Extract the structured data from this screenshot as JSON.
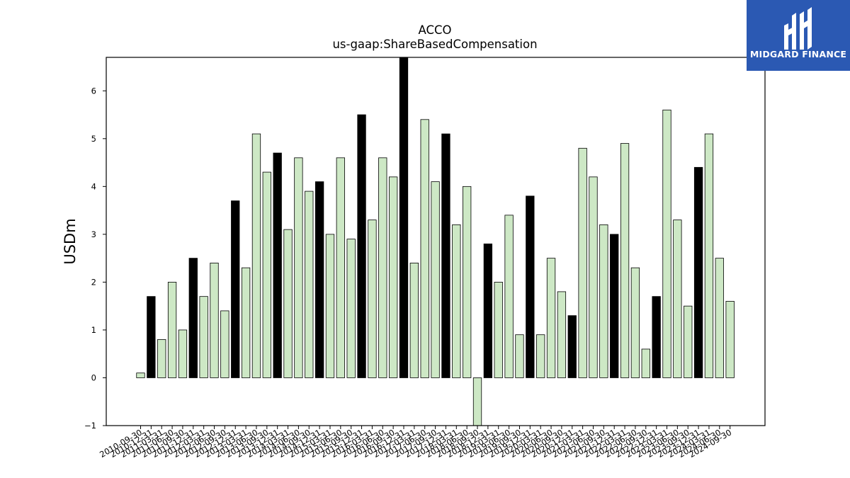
{
  "logo": {
    "text": "MIDGARD FINANCE",
    "bg_color": "#2b59b3",
    "icon": "midgard-logo-icon"
  },
  "chart_data": {
    "type": "bar",
    "title": "ACCO",
    "subtitle": "us-gaap:ShareBasedCompensation",
    "ylabel": "USDm",
    "xlabel": "",
    "ylim": [
      -1,
      6.7
    ],
    "yticks": [
      -1,
      0,
      1,
      2,
      3,
      4,
      5,
      6
    ],
    "grid": false,
    "colors": {
      "q4": "#000000",
      "other": "#cde8c5",
      "edge": "#000000"
    },
    "categories": [
      "2010-09-30",
      "2010-12-31",
      "2011-03-31",
      "2011-06-30",
      "2011-09-30",
      "2011-12-31",
      "2012-03-31",
      "2012-06-30",
      "2012-09-30",
      "2012-12-31",
      "2013-03-31",
      "2013-06-30",
      "2013-09-30",
      "2013-12-31",
      "2014-03-31",
      "2014-06-30",
      "2014-09-30",
      "2014-12-31",
      "2015-03-31",
      "2015-06-30",
      "2015-09-30",
      "2015-12-31",
      "2016-03-31",
      "2016-06-30",
      "2016-09-30",
      "2016-12-31",
      "2017-03-31",
      "2017-06-30",
      "2017-09-30",
      "2017-12-31",
      "2018-03-31",
      "2018-06-30",
      "2018-09-30",
      "2018-12-31",
      "2019-03-31",
      "2019-06-30",
      "2019-09-30",
      "2019-12-31",
      "2020-03-31",
      "2020-06-30",
      "2020-09-30",
      "2020-12-31",
      "2021-03-31",
      "2021-06-30",
      "2021-09-30",
      "2021-12-31",
      "2022-03-31",
      "2022-06-30",
      "2022-09-30",
      "2022-12-31",
      "2023-03-31",
      "2023-06-30",
      "2023-09-30",
      "2023-12-31",
      "2024-03-31",
      "2024-06-30",
      "2024-09-30"
    ],
    "values": [
      0.1,
      1.7,
      0.8,
      2.0,
      1.0,
      2.5,
      1.7,
      2.4,
      1.4,
      3.7,
      2.3,
      5.1,
      4.3,
      4.7,
      3.1,
      4.6,
      3.9,
      4.1,
      3.0,
      4.6,
      2.9,
      5.5,
      3.3,
      4.6,
      4.2,
      6.7,
      2.4,
      5.4,
      4.1,
      5.1,
      3.2,
      4.0,
      -1.0,
      2.8,
      2.0,
      3.4,
      0.9,
      3.8,
      0.9,
      2.5,
      1.8,
      1.3,
      4.8,
      4.2,
      3.2,
      3.0,
      4.9,
      2.3,
      0.6,
      1.7,
      5.6,
      3.3,
      1.5,
      4.4,
      5.1,
      2.5,
      1.6
    ]
  }
}
